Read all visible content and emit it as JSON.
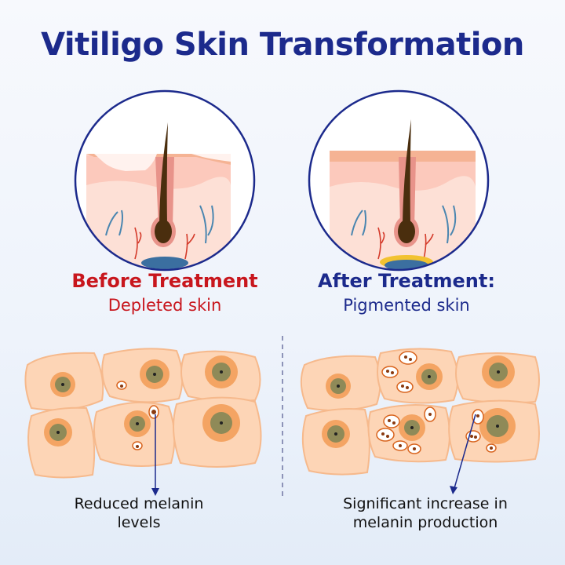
{
  "title": "Vitiligo Skin Transformation",
  "before": {
    "heading": "Before Treatment",
    "subheading": "Depleted skin",
    "caption_line1": "Reduced melanin",
    "caption_line2": "levels"
  },
  "after": {
    "heading": "After Treatment:",
    "subheading": "Pigmented skin",
    "caption_line1": "Significant increase in",
    "caption_line2": "melanin production"
  },
  "colors": {
    "title": "#1c2a8c",
    "before_heading": "#c8161d",
    "after_heading": "#1c2a8c",
    "cell": "#fdd5b6",
    "nucleus_ring": "#f4a463",
    "nucleus": "#8f8a58"
  }
}
